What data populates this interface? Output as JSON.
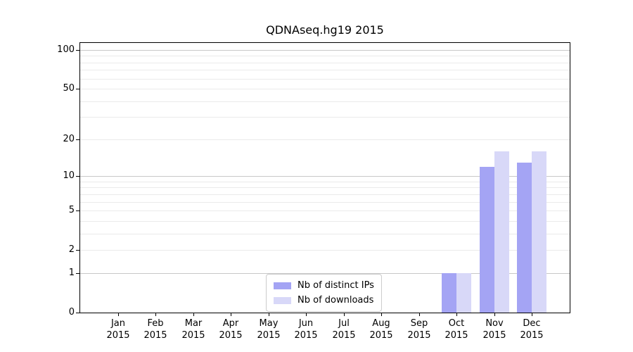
{
  "chart_data": {
    "type": "bar",
    "title": "QDNAseq.hg19 2015",
    "x_axis": {
      "categories": [
        "Jan",
        "Feb",
        "Mar",
        "Apr",
        "May",
        "Jun",
        "Jul",
        "Aug",
        "Sep",
        "Oct",
        "Nov",
        "Dec"
      ],
      "sub_label": "2015"
    },
    "y_axis": {
      "scale": "log1p",
      "min": 0,
      "max": 100,
      "ticks": [
        100,
        50,
        20,
        10,
        5,
        2,
        1,
        0
      ]
    },
    "series": [
      {
        "name": "Nb of distinct IPs",
        "color": "#a4a4f4",
        "values": [
          0,
          0,
          0,
          0,
          0,
          0,
          0,
          0,
          0,
          1,
          12,
          13
        ]
      },
      {
        "name": "Nb of downloads",
        "color": "#d8d8f8",
        "values": [
          0,
          0,
          0,
          0,
          0,
          0,
          0,
          0,
          0,
          1,
          16,
          16
        ]
      }
    ],
    "grid": {
      "on": true,
      "major_values": [
        1,
        10,
        100
      ],
      "minor_values": [
        2,
        3,
        4,
        5,
        6,
        7,
        8,
        9,
        20,
        30,
        40,
        50,
        60,
        70,
        80,
        90
      ],
      "major_color": "#c8c8c8",
      "minor_color": "#eaeaea"
    },
    "legend": {
      "position": "lower center"
    },
    "colors": {
      "background": "#ffffff",
      "axis": "#000000",
      "text": "#000000"
    }
  }
}
